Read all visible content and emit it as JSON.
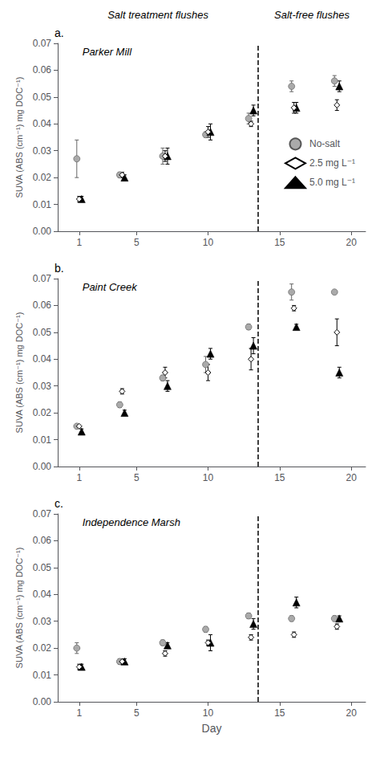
{
  "chart_data": [
    {
      "type": "scatter",
      "title": "a.",
      "subtitle": "Parker Mill",
      "annotations": [
        "Salt treatment flushes",
        "Salt-free flushes"
      ],
      "x": [
        1,
        4,
        7,
        10,
        13,
        16,
        19
      ],
      "series": [
        {
          "name": "No-salt",
          "color": "#aaaaaa",
          "marker": "circle",
          "values": [
            0.027,
            0.021,
            0.028,
            0.036,
            0.042,
            0.054,
            0.056
          ],
          "errors": [
            0.007,
            0.001,
            0.003,
            0.001,
            0.002,
            0.002,
            0.002
          ]
        },
        {
          "name": "2.5 mg L⁻¹",
          "color": "#ffffff",
          "marker": "diamond",
          "values": [
            0.012,
            0.021,
            0.028,
            0.037,
            0.04,
            0.046,
            0.047
          ],
          "errors": [
            0.001,
            0.001,
            0.002,
            0.002,
            0.001,
            0.002,
            0.002
          ]
        },
        {
          "name": "5.0 mg L⁻¹",
          "color": "#000000",
          "marker": "triangle",
          "values": [
            0.012,
            0.02,
            0.028,
            0.037,
            0.045,
            0.046,
            0.054
          ],
          "errors": [
            0.001,
            0.001,
            0.003,
            0.003,
            0.002,
            0.002,
            0.002
          ]
        }
      ],
      "vline": {
        "x": 13.5,
        "line_style": "dashed"
      },
      "xlim": [
        -0.5,
        21
      ],
      "ylim": [
        0,
        0.07
      ],
      "xticks": [
        1,
        5,
        10,
        15,
        20
      ],
      "yticks": [
        {
          "value": 0,
          "label": "0.00"
        },
        0.01,
        0.02,
        0.03,
        0.04,
        0.05,
        0.06,
        0.07
      ],
      "ylabel": "SUVA (ABS (cm⁻¹) mg DOC⁻¹)",
      "grid": false,
      "legend": "right"
    },
    {
      "type": "scatter",
      "title": "b.",
      "subtitle": "Paint Creek",
      "x": [
        1,
        4,
        7,
        10,
        13,
        16,
        19
      ],
      "series": [
        {
          "name": "No-salt",
          "color": "#aaaaaa",
          "marker": "circle",
          "values": [
            0.015,
            0.023,
            0.033,
            0.038,
            0.052,
            0.065,
            0.065
          ],
          "errors": [
            0,
            0.001,
            0.001,
            0.003,
            0.001,
            0.003,
            0
          ]
        },
        {
          "name": "2.5 mg L⁻¹",
          "color": "#ffffff",
          "marker": "diamond",
          "values": [
            0.015,
            0.028,
            0.035,
            0.035,
            0.04,
            0.059,
            0.05
          ],
          "errors": [
            0,
            0.001,
            0.002,
            0.003,
            0.004,
            0.001,
            0.005
          ]
        },
        {
          "name": "5.0 mg L⁻¹",
          "color": "#000000",
          "marker": "triangle",
          "values": [
            0.013,
            0.02,
            0.03,
            0.042,
            0.045,
            0.052,
            0.035
          ],
          "errors": [
            0.001,
            0.001,
            0.002,
            0.002,
            0.003,
            0.001,
            0.002
          ]
        }
      ],
      "vline": {
        "x": 13.5,
        "line_style": "dashed"
      },
      "xlim": [
        -0.5,
        21
      ],
      "ylim": [
        0,
        0.07
      ],
      "xticks": [
        1,
        5,
        10,
        15,
        20
      ],
      "yticks": [
        {
          "value": 0,
          "label": "0.00"
        },
        0.01,
        0.02,
        0.03,
        0.04,
        0.05,
        0.06,
        0.07
      ],
      "ylabel": "SUVA (ABS (cm⁻¹) mg DOC⁻¹)",
      "grid": false
    },
    {
      "type": "scatter",
      "title": "c.",
      "subtitle": "Independence Marsh",
      "x": [
        1,
        4,
        7,
        10,
        13,
        16,
        19
      ],
      "series": [
        {
          "name": "No-salt",
          "color": "#aaaaaa",
          "marker": "circle",
          "values": [
            0.02,
            0.015,
            0.022,
            0.027,
            0.032,
            0.031,
            0.031
          ],
          "errors": [
            0.002,
            0.001,
            0.001,
            0.001,
            0.001,
            0.001,
            0.001
          ]
        },
        {
          "name": "2.5 mg L⁻¹",
          "color": "#ffffff",
          "marker": "diamond",
          "values": [
            0.013,
            0.015,
            0.018,
            0.022,
            0.024,
            0.025,
            0.028
          ],
          "errors": [
            0.001,
            0.001,
            0.001,
            0.001,
            0.001,
            0.001,
            0.001
          ]
        },
        {
          "name": "5.0 mg L⁻¹",
          "color": "#000000",
          "marker": "triangle",
          "values": [
            0.013,
            0.015,
            0.021,
            0.022,
            0.029,
            0.037,
            0.031
          ],
          "errors": [
            0.001,
            0.001,
            0.001,
            0.003,
            0.002,
            0.002,
            0.001
          ]
        }
      ],
      "vline": {
        "x": 13.5,
        "line_style": "dashed"
      },
      "xlim": [
        -0.5,
        21
      ],
      "ylim": [
        0,
        0.07
      ],
      "xticks": [
        1,
        5,
        10,
        15,
        20
      ],
      "yticks": [
        {
          "value": 0,
          "label": "0.00"
        },
        0.01,
        0.02,
        0.03,
        0.04,
        0.05,
        0.06,
        0.07
      ],
      "ylabel": "SUVA (ABS (cm⁻¹) mg DOC⁻¹)",
      "xlabel": "Day",
      "grid": false
    }
  ]
}
